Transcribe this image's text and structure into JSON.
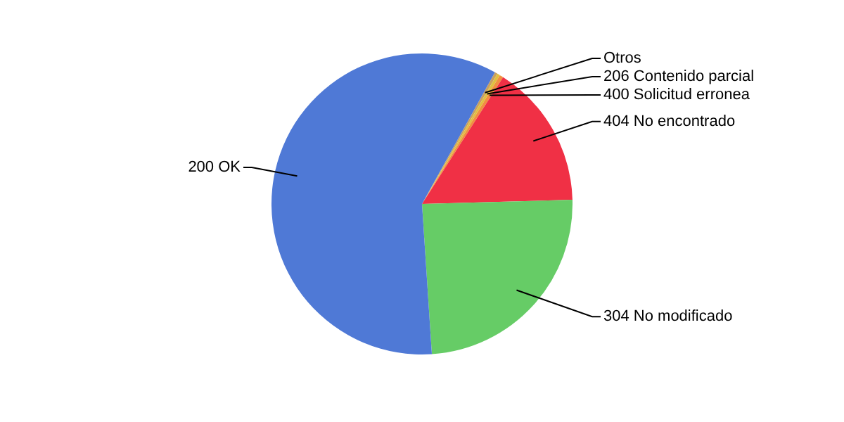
{
  "chart_data": {
    "type": "pie",
    "categories": [
      "Otros",
      "206 Contenido parcial",
      "400 Solicitud erronea",
      "404 No encontrado",
      "304 No modificado",
      "200 OK"
    ],
    "values": [
      0.3,
      0.3,
      0.4,
      15.5,
      24.4,
      59.1
    ],
    "colors": [
      "#c8a060",
      "#e0c040",
      "#f09040",
      "#f03045",
      "#66cc66",
      "#4f79d6"
    ]
  }
}
